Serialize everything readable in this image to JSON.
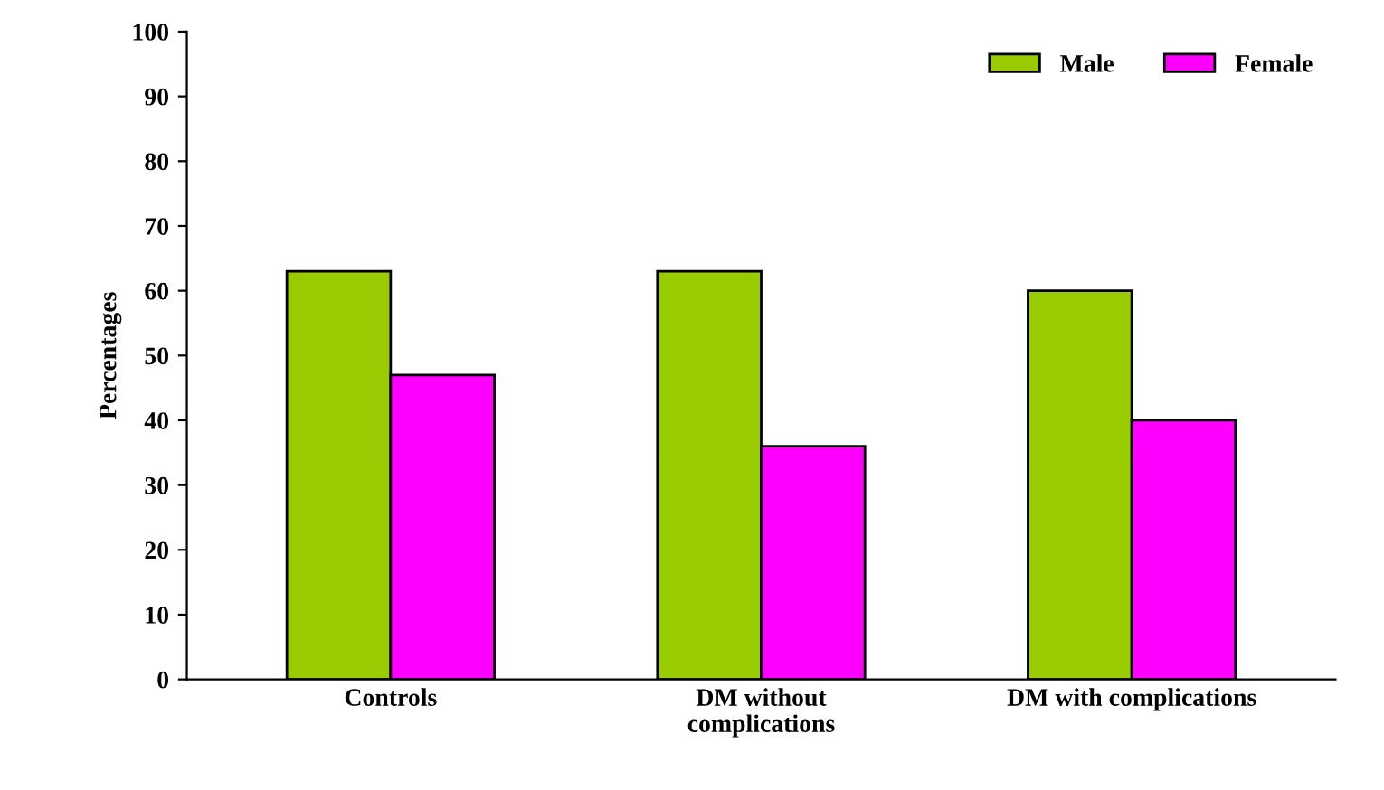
{
  "chart_data": {
    "type": "bar",
    "ylabel": "Percentages",
    "categories": [
      "Controls",
      "DM without\ncomplications",
      "DM with complications"
    ],
    "series": [
      {
        "name": "Male",
        "color": "#99cc00",
        "values": [
          63,
          63,
          60
        ]
      },
      {
        "name": "Female",
        "color": "#ff00ff",
        "values": [
          47,
          36,
          40
        ]
      }
    ],
    "ylim": [
      0,
      100
    ],
    "yticks": [
      0,
      10,
      20,
      30,
      40,
      50,
      60,
      70,
      80,
      90,
      100
    ],
    "grid": false,
    "legend": "top right"
  }
}
